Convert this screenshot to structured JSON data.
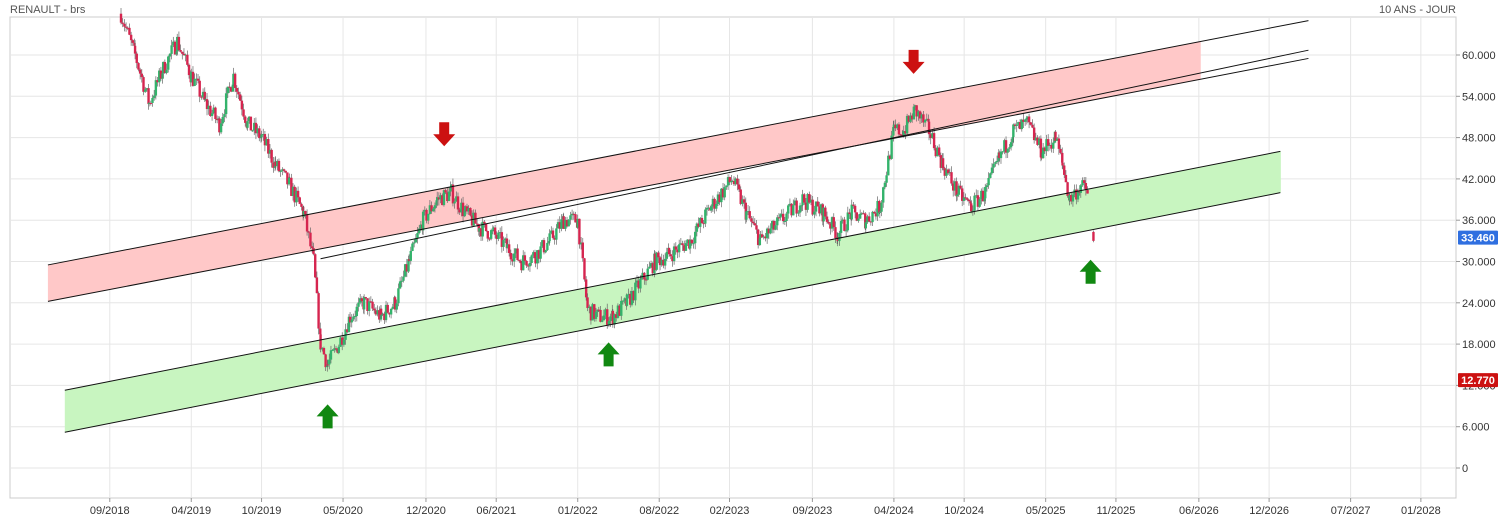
{
  "header": {
    "symbol_label": "RENAULT - brs",
    "period_label": "10 ANS - JOUR"
  },
  "colors": {
    "up_candle": "#33b36b",
    "down_candle": "#d6254f",
    "resistance_fill": "#ffc8c8",
    "support_fill": "#c8f5c0",
    "down_arrow": "#cc1111",
    "up_arrow": "#118811",
    "last_price_badge": "#2f6fe0",
    "low_price_badge": "#cc1111",
    "grid": "#e6e6e6"
  },
  "chart_data": {
    "type": "candlestick",
    "title": "",
    "y_ticks": [
      "0",
      "6.000",
      "12.000",
      "18.000",
      "24.000",
      "30.000",
      "36.000",
      "42.000",
      "48.000",
      "54.000",
      "60.000"
    ],
    "y_tick_values": [
      0,
      6,
      12,
      18,
      24,
      30,
      36,
      42,
      48,
      54,
      60
    ],
    "ylim": [
      -4,
      65
    ],
    "x_ticks": [
      "09/2018",
      "04/2019",
      "10/2019",
      "05/2020",
      "12/2020",
      "06/2021",
      "01/2022",
      "08/2022",
      "02/2023",
      "09/2023",
      "04/2024",
      "10/2024",
      "05/2025",
      "11/2025",
      "06/2026",
      "12/2026",
      "07/2027",
      "01/2028"
    ],
    "x_tick_values": [
      2018.67,
      2019.25,
      2019.75,
      2020.33,
      2020.92,
      2021.42,
      2022.0,
      2022.58,
      2023.08,
      2023.67,
      2024.25,
      2024.75,
      2025.33,
      2025.83,
      2026.42,
      2026.92,
      2027.5,
      2028.0
    ],
    "xlim": [
      2017.96,
      2028.25
    ],
    "price_path": [
      [
        2018.75,
        66
      ],
      [
        2018.85,
        60
      ],
      [
        2018.95,
        53
      ],
      [
        2019.05,
        58
      ],
      [
        2019.15,
        62
      ],
      [
        2019.25,
        57
      ],
      [
        2019.35,
        53
      ],
      [
        2019.45,
        50
      ],
      [
        2019.55,
        57
      ],
      [
        2019.65,
        50
      ],
      [
        2019.75,
        48
      ],
      [
        2019.85,
        44
      ],
      [
        2019.95,
        41
      ],
      [
        2020.05,
        37
      ],
      [
        2020.12,
        30
      ],
      [
        2020.17,
        18
      ],
      [
        2020.22,
        15
      ],
      [
        2020.3,
        18
      ],
      [
        2020.38,
        22
      ],
      [
        2020.48,
        24
      ],
      [
        2020.6,
        22
      ],
      [
        2020.7,
        24
      ],
      [
        2020.8,
        30
      ],
      [
        2020.9,
        36
      ],
      [
        2021.0,
        39
      ],
      [
        2021.1,
        40
      ],
      [
        2021.2,
        37
      ],
      [
        2021.3,
        35
      ],
      [
        2021.4,
        34
      ],
      [
        2021.5,
        32
      ],
      [
        2021.6,
        30
      ],
      [
        2021.7,
        31
      ],
      [
        2021.8,
        33
      ],
      [
        2021.9,
        36
      ],
      [
        2022.0,
        36
      ],
      [
        2022.07,
        23
      ],
      [
        2022.15,
        22
      ],
      [
        2022.25,
        22
      ],
      [
        2022.35,
        24
      ],
      [
        2022.45,
        27
      ],
      [
        2022.55,
        30
      ],
      [
        2022.65,
        31
      ],
      [
        2022.8,
        33
      ],
      [
        2022.95,
        38
      ],
      [
        2023.1,
        42
      ],
      [
        2023.2,
        37
      ],
      [
        2023.3,
        33
      ],
      [
        2023.45,
        36
      ],
      [
        2023.6,
        39
      ],
      [
        2023.75,
        37
      ],
      [
        2023.85,
        34
      ],
      [
        2023.95,
        37
      ],
      [
        2024.05,
        36
      ],
      [
        2024.15,
        38
      ],
      [
        2024.25,
        49
      ],
      [
        2024.32,
        49
      ],
      [
        2024.4,
        52
      ],
      [
        2024.5,
        49
      ],
      [
        2024.6,
        44
      ],
      [
        2024.7,
        40
      ],
      [
        2024.8,
        38
      ],
      [
        2024.9,
        40
      ],
      [
        2025.0,
        45
      ],
      [
        2025.1,
        49
      ],
      [
        2025.2,
        50
      ],
      [
        2025.3,
        46
      ],
      [
        2025.4,
        48
      ],
      [
        2025.45,
        44
      ],
      [
        2025.5,
        39
      ],
      [
        2025.58,
        41
      ],
      [
        2025.63,
        40
      ]
    ],
    "last_price_label": "33.460",
    "last_price_value": 33.46,
    "low_price_label": "12.770",
    "low_price_value": 12.77,
    "resistance_channel": {
      "upper": [
        [
          2018.23,
          29.5
        ],
        [
          2027.2,
          65
        ]
      ],
      "lower": [
        [
          2018.23,
          24.2
        ],
        [
          2027.2,
          59.5
        ]
      ],
      "fill_end": 2026.43,
      "extra_line": [
        [
          2020.17,
          30.4
        ],
        [
          2027.2,
          60.7
        ]
      ]
    },
    "support_channel": {
      "upper": [
        [
          2018.35,
          11.3
        ],
        [
          2027.0,
          46
        ]
      ],
      "lower": [
        [
          2018.35,
          5.2
        ],
        [
          2027.0,
          40
        ]
      ],
      "fill_end": 2027.0
    },
    "markers": [
      {
        "type": "down",
        "x": 2021.05,
        "y": 48.5
      },
      {
        "type": "down",
        "x": 2024.39,
        "y": 59
      },
      {
        "type": "up",
        "x": 2020.22,
        "y": 7.5
      },
      {
        "type": "up",
        "x": 2022.22,
        "y": 16.5
      },
      {
        "type": "up",
        "x": 2025.65,
        "y": 28.5
      }
    ]
  }
}
